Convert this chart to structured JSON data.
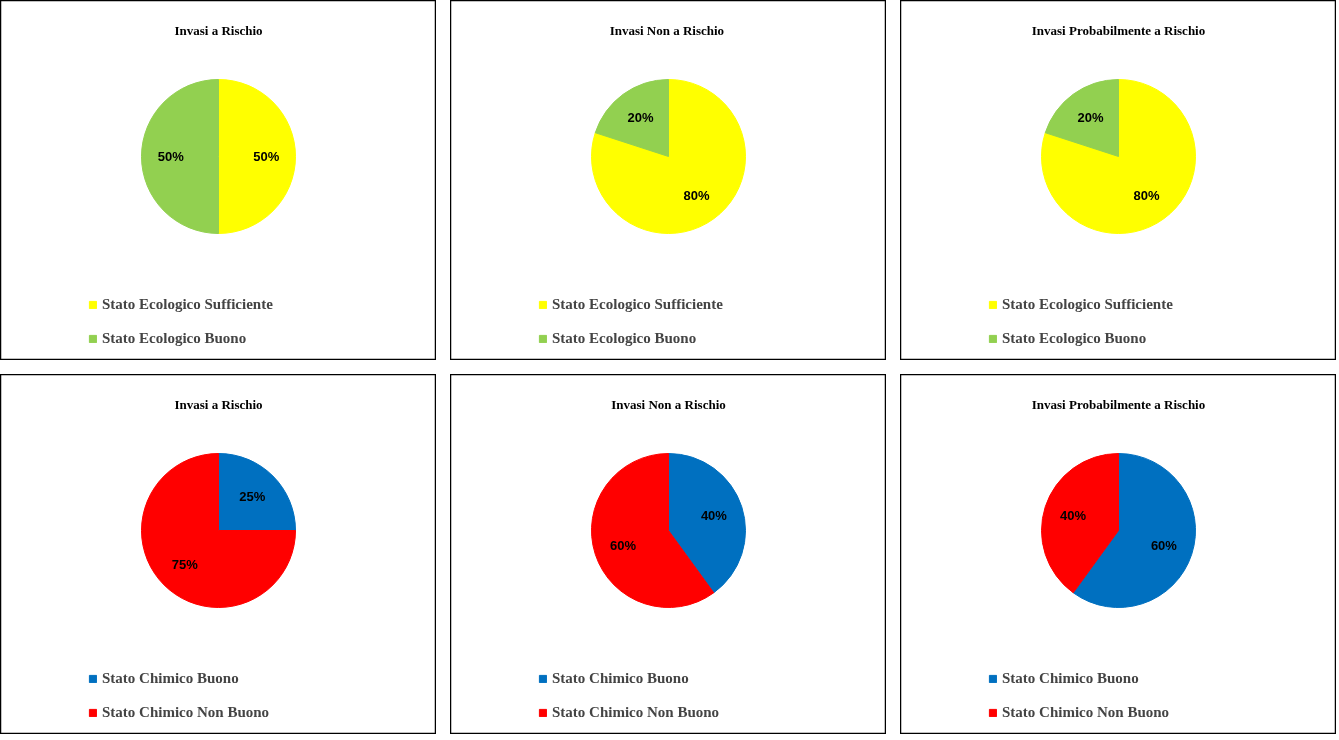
{
  "chart_data": [
    {
      "type": "pie",
      "title": "Invasi a Rischio",
      "categories": [
        "Stato Ecologico Sufficiente",
        "Stato Ecologico Buono"
      ],
      "values": [
        50,
        50
      ],
      "colors": [
        "#ffff00",
        "#92d050"
      ],
      "value_labels": [
        "50%",
        "50%"
      ],
      "legend": "bottom"
    },
    {
      "type": "pie",
      "title": "Invasi  Non a Rischio",
      "categories": [
        "Stato Ecologico Sufficiente",
        "Stato Ecologico Buono"
      ],
      "values": [
        80,
        20
      ],
      "colors": [
        "#ffff00",
        "#92d050"
      ],
      "value_labels": [
        "80%",
        "20%"
      ],
      "legend": "bottom"
    },
    {
      "type": "pie",
      "title": "Invasi Probabilmente a Rischio",
      "categories": [
        "Stato Ecologico Sufficiente",
        "Stato Ecologico Buono"
      ],
      "values": [
        80,
        20
      ],
      "colors": [
        "#ffff00",
        "#92d050"
      ],
      "value_labels": [
        "80%",
        "20%"
      ],
      "legend": "bottom"
    },
    {
      "type": "pie",
      "title": "Invasi a Rischio",
      "categories": [
        "Stato Chimico Buono",
        "Stato Chimico Non Buono"
      ],
      "values": [
        25,
        75
      ],
      "colors": [
        "#0070c0",
        "#ff0000"
      ],
      "value_labels": [
        "25%",
        "75%"
      ],
      "legend": "bottom"
    },
    {
      "type": "pie",
      "title": "Invasi Non a Rischio",
      "categories": [
        "Stato Chimico Buono",
        "Stato Chimico Non Buono"
      ],
      "values": [
        40,
        60
      ],
      "colors": [
        "#0070c0",
        "#ff0000"
      ],
      "value_labels": [
        "40%",
        "60%"
      ],
      "legend": "bottom"
    },
    {
      "type": "pie",
      "title": "Invasi Probabilmente a Rischio",
      "categories": [
        "Stato Chimico Buono",
        "Stato Chimico Non Buono"
      ],
      "values": [
        60,
        40
      ],
      "colors": [
        "#0070c0",
        "#ff0000"
      ],
      "value_labels": [
        "60%",
        "40%"
      ],
      "legend": "bottom"
    }
  ]
}
